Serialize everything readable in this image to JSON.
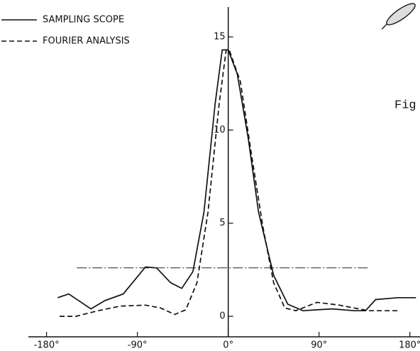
{
  "chart_data": {
    "type": "line",
    "annotation": "Fig",
    "xlim": [
      -198,
      190
    ],
    "ylim": [
      -1.1,
      16.6
    ],
    "xticks": [
      {
        "value": -180,
        "label": "-180°"
      },
      {
        "value": -90,
        "label": "-90°"
      },
      {
        "value": 0,
        "label": "0°"
      },
      {
        "value": 90,
        "label": "90°"
      },
      {
        "value": 180,
        "label": "180°"
      }
    ],
    "yticks": [
      0,
      5,
      10,
      15
    ],
    "reference_line": {
      "y": 2.6,
      "x": [
        -150,
        140
      ]
    },
    "series": [
      {
        "name": "SAMPLING SCOPE",
        "color": "#111111",
        "style": "solid",
        "x": [
          -169,
          -158,
          -136,
          -122,
          -104,
          -82,
          -71,
          -57,
          -46,
          -35,
          -24,
          -13,
          -6,
          0,
          9,
          20,
          30,
          45,
          59,
          74,
          88,
          103,
          125,
          136,
          146,
          168,
          186
        ],
        "values": [
          1.0,
          1.2,
          0.4,
          0.85,
          1.2,
          2.65,
          2.6,
          1.8,
          1.5,
          2.4,
          5.6,
          11.4,
          14.3,
          14.3,
          13,
          9.5,
          5.6,
          2.2,
          0.65,
          0.3,
          0.35,
          0.4,
          0.3,
          0.3,
          0.9,
          1.0,
          1.0
        ]
      },
      {
        "name": "FOURIER ANALYSIS",
        "color": "#111111",
        "style": "dashed",
        "x": [
          -167,
          -151,
          -129,
          -107,
          -82,
          -67,
          -53,
          -42,
          -31,
          -20,
          -9,
          -2,
          1,
          12,
          23,
          34,
          45,
          56,
          67,
          88,
          110,
          139,
          168
        ],
        "values": [
          0,
          0,
          0.3,
          0.55,
          0.6,
          0.45,
          0.1,
          0.35,
          1.8,
          5.6,
          11.4,
          14.3,
          14.3,
          12.6,
          8.7,
          4.9,
          1.8,
          0.45,
          0.3,
          0.75,
          0.6,
          0.3,
          0.3
        ]
      }
    ]
  }
}
